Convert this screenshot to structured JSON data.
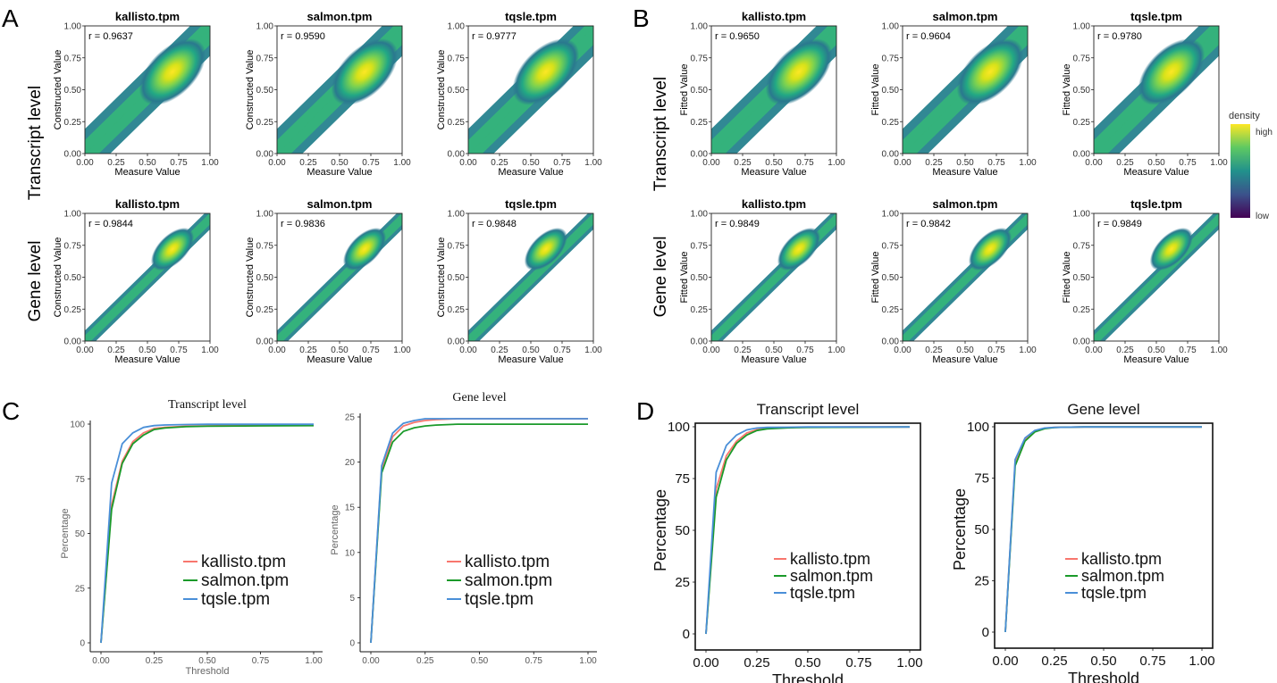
{
  "panel_labels": {
    "a": "A",
    "b": "B",
    "c": "C",
    "d": "D"
  },
  "row_labels": {
    "transcript": "Transcript level",
    "gene": "Gene level"
  },
  "density_legend": {
    "title": "density",
    "high": "high",
    "low": "low",
    "colors": [
      "#fde725",
      "#5ec962",
      "#21918c",
      "#3b528b",
      "#440154"
    ]
  },
  "colors": {
    "kallisto": "#f8766d",
    "salmon": "#1a9a2a",
    "tqsle": "#4a8fd8"
  },
  "chart_data": [
    {
      "id": "A",
      "type": "scatter",
      "x_label": "Measure Value",
      "y_label": "Constructed Value",
      "xlim": [
        0,
        1
      ],
      "ylim": [
        0,
        1
      ],
      "ticks": [
        "0.00",
        "0.25",
        "0.50",
        "0.75",
        "1.00"
      ],
      "panels": [
        {
          "title": "kallisto.tpm",
          "level": "transcript",
          "r_text": "r = 0.9637"
        },
        {
          "title": "salmon.tpm",
          "level": "transcript",
          "r_text": "r = 0.9590"
        },
        {
          "title": "tqsle.tpm",
          "level": "transcript",
          "r_text": "r = 0.9777"
        },
        {
          "title": "kallisto.tpm",
          "level": "gene",
          "r_text": "r = 0.9844"
        },
        {
          "title": "salmon.tpm",
          "level": "gene",
          "r_text": "r = 0.9836"
        },
        {
          "title": "tqsle.tpm",
          "level": "gene",
          "r_text": "r = 0.9848"
        }
      ]
    },
    {
      "id": "B",
      "type": "scatter",
      "x_label": "Measure Value",
      "y_label": "Fitted Value",
      "xlim": [
        0,
        1
      ],
      "ylim": [
        0,
        1
      ],
      "ticks": [
        "0.00",
        "0.25",
        "0.50",
        "0.75",
        "1.00"
      ],
      "panels": [
        {
          "title": "kallisto.tpm",
          "level": "transcript",
          "r_text": "r = 0.9650"
        },
        {
          "title": "salmon.tpm",
          "level": "transcript",
          "r_text": "r = 0.9604"
        },
        {
          "title": "tqsle.tpm",
          "level": "transcript",
          "r_text": "r = 0.9780"
        },
        {
          "title": "kallisto.tpm",
          "level": "gene",
          "r_text": "r = 0.9849"
        },
        {
          "title": "salmon.tpm",
          "level": "gene",
          "r_text": "r = 0.9842"
        },
        {
          "title": "tqsle.tpm",
          "level": "gene",
          "r_text": "r = 0.9849"
        }
      ]
    },
    {
      "id": "C1",
      "type": "line",
      "title": "Transcript level",
      "xlabel": "Threshold",
      "ylabel": "Percentage",
      "xlim": [
        0,
        1
      ],
      "ylim": [
        0,
        100
      ],
      "x_ticks": [
        "0.00",
        "0.25",
        "0.50",
        "0.75",
        "1.00"
      ],
      "y_ticks": [
        "0",
        "25",
        "50",
        "75",
        "100"
      ],
      "x": [
        0,
        0.05,
        0.1,
        0.15,
        0.2,
        0.25,
        0.3,
        0.4,
        0.5,
        0.75,
        1.0
      ],
      "series": [
        {
          "name": "kallisto.tpm",
          "color": "#f8766d",
          "values": [
            0,
            63,
            83,
            92,
            96,
            98,
            98.5,
            99,
            99.2,
            99.4,
            99.5
          ]
        },
        {
          "name": "salmon.tpm",
          "color": "#1a9a2a",
          "values": [
            0,
            61,
            82,
            91,
            95,
            97.5,
            98.2,
            98.8,
            99.0,
            99.2,
            99.3
          ]
        },
        {
          "name": "tqsle.tpm",
          "color": "#4a8fd8",
          "values": [
            0,
            73,
            91,
            96,
            98.5,
            99.3,
            99.6,
            99.8,
            99.9,
            99.9,
            99.9
          ]
        }
      ]
    },
    {
      "id": "C2",
      "type": "line",
      "title": "Gene level",
      "xlabel": "",
      "ylabel": "Percentage",
      "xlim": [
        0,
        1
      ],
      "ylim": [
        0,
        25
      ],
      "x_ticks": [
        "0.00",
        "0.25",
        "0.50",
        "0.75",
        "1.00"
      ],
      "y_ticks": [
        "0",
        "5",
        "10",
        "15",
        "20",
        "25"
      ],
      "x": [
        0,
        0.05,
        0.1,
        0.15,
        0.2,
        0.25,
        0.3,
        0.4,
        0.5,
        0.75,
        1.0
      ],
      "series": [
        {
          "name": "kallisto.tpm",
          "color": "#f8766d",
          "values": [
            0,
            19.3,
            22.8,
            24.0,
            24.4,
            24.6,
            24.7,
            24.8,
            24.8,
            24.8,
            24.8
          ]
        },
        {
          "name": "salmon.tpm",
          "color": "#1a9a2a",
          "values": [
            0,
            18.8,
            22.2,
            23.4,
            23.8,
            24.0,
            24.1,
            24.2,
            24.2,
            24.2,
            24.2
          ]
        },
        {
          "name": "tqsle.tpm",
          "color": "#4a8fd8",
          "values": [
            0,
            19.6,
            23.2,
            24.3,
            24.6,
            24.8,
            24.8,
            24.8,
            24.8,
            24.8,
            24.8
          ]
        }
      ]
    },
    {
      "id": "D1",
      "type": "line",
      "title": "Transcript level",
      "xlabel": "Threshold",
      "ylabel": "Percentage",
      "xlim": [
        0,
        1
      ],
      "ylim": [
        0,
        100
      ],
      "x_ticks": [
        "0.00",
        "0.25",
        "0.50",
        "0.75",
        "1.00"
      ],
      "y_ticks": [
        "0",
        "25",
        "50",
        "75",
        "100"
      ],
      "x": [
        0,
        0.05,
        0.1,
        0.15,
        0.2,
        0.25,
        0.3,
        0.4,
        0.5,
        0.75,
        1.0
      ],
      "series": [
        {
          "name": "kallisto.tpm",
          "color": "#f8766d",
          "values": [
            0,
            70,
            86,
            93,
            97,
            98.6,
            99.2,
            99.6,
            99.8,
            99.9,
            99.9
          ]
        },
        {
          "name": "salmon.tpm",
          "color": "#1a9a2a",
          "values": [
            0,
            66,
            84,
            92,
            96,
            98.2,
            99.0,
            99.5,
            99.7,
            99.8,
            99.9
          ]
        },
        {
          "name": "tqsle.tpm",
          "color": "#4a8fd8",
          "values": [
            0,
            78,
            91,
            96,
            98.5,
            99.4,
            99.7,
            99.8,
            99.9,
            99.9,
            99.9
          ]
        }
      ]
    },
    {
      "id": "D2",
      "type": "line",
      "title": "Gene level",
      "xlabel": "Threshold",
      "ylabel": "Percentage",
      "xlim": [
        0,
        1
      ],
      "ylim": [
        0,
        100
      ],
      "x_ticks": [
        "0.00",
        "0.25",
        "0.50",
        "0.75",
        "1.00"
      ],
      "y_ticks": [
        "0",
        "25",
        "50",
        "75",
        "100"
      ],
      "x": [
        0,
        0.05,
        0.1,
        0.15,
        0.2,
        0.25,
        0.3,
        0.4,
        0.5,
        0.75,
        1.0
      ],
      "series": [
        {
          "name": "kallisto.tpm",
          "color": "#f8766d",
          "values": [
            0,
            83,
            94,
            98,
            99.3,
            99.7,
            99.8,
            99.9,
            99.9,
            99.9,
            99.9
          ]
        },
        {
          "name": "salmon.tpm",
          "color": "#1a9a2a",
          "values": [
            0,
            81,
            93,
            97.5,
            99.1,
            99.6,
            99.8,
            99.9,
            99.9,
            99.9,
            99.9
          ]
        },
        {
          "name": "tqsle.tpm",
          "color": "#4a8fd8",
          "values": [
            0,
            84,
            94.5,
            98.2,
            99.4,
            99.7,
            99.8,
            99.9,
            99.9,
            99.9,
            99.9
          ]
        }
      ]
    }
  ]
}
